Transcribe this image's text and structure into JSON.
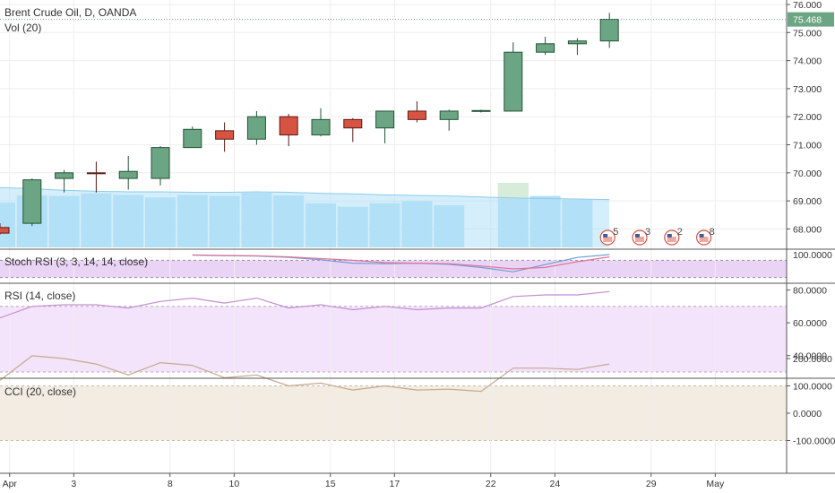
{
  "colors": {
    "up": "#6ba583",
    "down": "#d75442",
    "up_border": "#225437",
    "down_border": "#5b1a13",
    "volume": "#a9dcf5",
    "volume_up_last": "#d7ecd9",
    "ma_line": "#b3e0f7",
    "stoch_fill": "#ead4f5",
    "stoch_k": "#6ba0d6",
    "stoch_d": "#e2729a",
    "rsi_fill": "#f3e4fb",
    "rsi_line": "#c48fd1",
    "cci_fill": "#f2ece3",
    "cci_line": "#c6a98c",
    "price_badge": "#6ba583",
    "grid": "#eeeeee",
    "separator": "#555555"
  },
  "chart_data": {
    "main": {
      "title": "Brent Crude Oil, D, OANDA",
      "type": "candlestick",
      "y_ticks": [
        "76.000",
        "75.000",
        "74.000",
        "73.000",
        "72.000",
        "71.000",
        "70.000",
        "69.000",
        "68.000"
      ],
      "last_price_label": "75.468",
      "last_price": 75.468,
      "candles": [
        {
          "x": 0,
          "o": 68.05,
          "h": 68.2,
          "l": 67.8,
          "c": 67.85
        },
        {
          "x": 1,
          "o": 68.2,
          "h": 69.8,
          "l": 68.1,
          "c": 69.75
        },
        {
          "x": 2,
          "o": 69.8,
          "h": 70.1,
          "l": 69.3,
          "c": 70.0
        },
        {
          "x": 3,
          "o": 70.0,
          "h": 70.4,
          "l": 69.3,
          "c": 69.98
        },
        {
          "x": 4,
          "o": 69.8,
          "h": 70.6,
          "l": 69.4,
          "c": 70.05
        },
        {
          "x": 5,
          "o": 69.8,
          "h": 70.95,
          "l": 69.55,
          "c": 70.9
        },
        {
          "x": 6,
          "o": 70.9,
          "h": 71.65,
          "l": 70.9,
          "c": 71.55
        },
        {
          "x": 7,
          "o": 71.5,
          "h": 71.8,
          "l": 70.75,
          "c": 71.2
        },
        {
          "x": 8,
          "o": 71.2,
          "h": 72.2,
          "l": 71.0,
          "c": 72.0
        },
        {
          "x": 9,
          "o": 72.0,
          "h": 72.1,
          "l": 70.95,
          "c": 71.35
        },
        {
          "x": 10,
          "o": 71.35,
          "h": 72.3,
          "l": 71.3,
          "c": 71.9
        },
        {
          "x": 11,
          "o": 71.9,
          "h": 71.95,
          "l": 71.1,
          "c": 71.6
        },
        {
          "x": 12,
          "o": 71.6,
          "h": 72.2,
          "l": 71.05,
          "c": 72.2
        },
        {
          "x": 13,
          "o": 72.2,
          "h": 72.55,
          "l": 71.8,
          "c": 71.9
        },
        {
          "x": 14,
          "o": 71.9,
          "h": 72.25,
          "l": 71.5,
          "c": 72.2
        },
        {
          "x": 15,
          "o": 72.2,
          "h": 72.25,
          "l": 72.15,
          "c": 72.22
        },
        {
          "x": 16,
          "o": 72.2,
          "h": 74.65,
          "l": 72.2,
          "c": 74.3
        },
        {
          "x": 17,
          "o": 74.3,
          "h": 74.85,
          "l": 74.2,
          "c": 74.6
        },
        {
          "x": 18,
          "o": 74.6,
          "h": 74.8,
          "l": 74.2,
          "c": 74.7
        },
        {
          "x": 19,
          "o": 74.7,
          "h": 75.7,
          "l": 74.45,
          "c": 75.47
        }
      ]
    },
    "volume": {
      "title": "Vol (20)",
      "values": [
        0.86,
        1.0,
        0.99,
        1.04,
        1.01,
        0.96,
        1.01,
        0.99,
        1.05,
        1.0,
        0.85,
        0.78,
        0.85,
        0.89,
        0.81,
        0.0,
        1.24,
        0.99,
        0.92,
        0.0
      ],
      "ma": [
        1.15,
        1.13,
        1.1,
        1.08,
        1.07,
        1.07,
        1.06,
        1.06,
        1.07,
        1.06,
        1.04,
        1.03,
        1.01,
        1.0,
        0.99,
        0.97,
        0.95,
        0.94,
        0.93,
        0.92
      ]
    },
    "stoch_rsi": {
      "title": "Stoch RSI (3, 3, 14, 14, close)",
      "y_ticks": [
        "100.0000"
      ],
      "k": [
        null,
        null,
        null,
        null,
        null,
        null,
        98,
        96,
        95,
        90,
        82,
        70,
        68,
        70,
        66,
        55,
        40,
        65,
        90,
        100
      ],
      "d": [
        null,
        null,
        null,
        null,
        null,
        null,
        99,
        97,
        96,
        92,
        86,
        80,
        72,
        70,
        68,
        60,
        50,
        55,
        75,
        92
      ]
    },
    "rsi": {
      "title": "RSI (14, close)",
      "y_ticks": [
        "80.0000",
        "60.0000",
        "40.0000"
      ],
      "band": [
        30,
        70
      ],
      "values": [
        63,
        70,
        71,
        71,
        69,
        73,
        75,
        72,
        75,
        69,
        71,
        68,
        70,
        68,
        69,
        69,
        76,
        77,
        77,
        79
      ]
    },
    "cci": {
      "title": "CCI (20, close)",
      "y_ticks": [
        "200.0000",
        "100.0000",
        "0.0000",
        "-100.0000"
      ],
      "band": [
        -100,
        100
      ],
      "values": [
        120,
        210,
        200,
        180,
        140,
        185,
        175,
        130,
        140,
        100,
        110,
        85,
        100,
        85,
        88,
        80,
        165,
        165,
        160,
        180
      ]
    },
    "x_ticks": [
      {
        "label": "Apr",
        "x": 0.3
      },
      {
        "label": "3",
        "x": 2.3
      },
      {
        "label": "8",
        "x": 5.3
      },
      {
        "label": "10",
        "x": 7.3
      },
      {
        "label": "15",
        "x": 10.3
      },
      {
        "label": "17",
        "x": 12.3
      },
      {
        "label": "22",
        "x": 15.3
      },
      {
        "label": "24",
        "x": 17.3
      },
      {
        "label": "29",
        "x": 20.3
      },
      {
        "label": "May",
        "x": 22.3
      }
    ],
    "events": [
      {
        "x": 19.0,
        "count": "5"
      },
      {
        "x": 20.0,
        "count": "3"
      },
      {
        "x": 21.0,
        "count": "2"
      },
      {
        "x": 22.0,
        "count": "8"
      }
    ]
  }
}
